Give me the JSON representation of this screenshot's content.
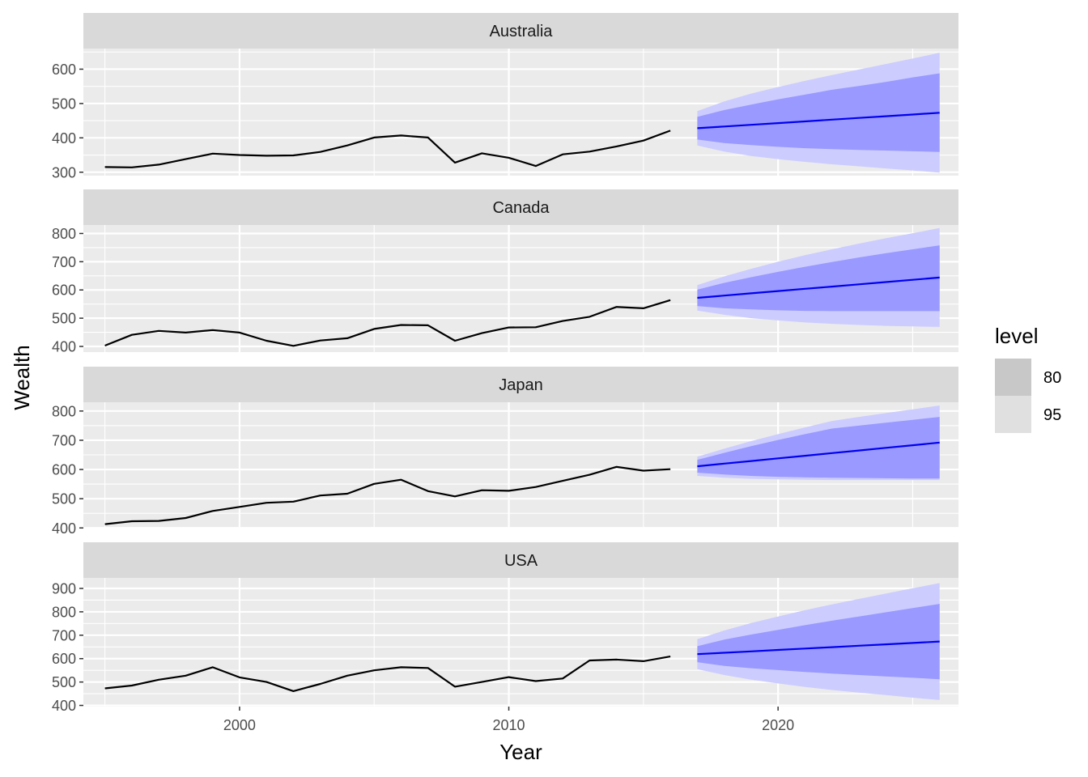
{
  "chart_data": {
    "type": "line",
    "xlabel": "Year",
    "ylabel": "Wealth",
    "xlim": [
      1994.2,
      2026.7
    ],
    "x_ticks": [
      2000,
      2010,
      2020
    ],
    "x_tick_labels": [
      "2000",
      "2010",
      "2020"
    ],
    "history_x": [
      1995,
      1996,
      1997,
      1998,
      1999,
      2000,
      2001,
      2002,
      2003,
      2004,
      2005,
      2006,
      2007,
      2008,
      2009,
      2010,
      2011,
      2012,
      2013,
      2014,
      2015,
      2016
    ],
    "forecast_x": [
      2017,
      2018,
      2019,
      2020,
      2021,
      2022,
      2023,
      2024,
      2025,
      2026
    ],
    "legend": {
      "title": "level",
      "placement": "right",
      "entries": [
        {
          "label": "80",
          "color": "#c8c8c8"
        },
        {
          "label": "95",
          "color": "#e0e0e0"
        }
      ]
    },
    "colors": {
      "history": "#000000",
      "forecast": "#0000ee",
      "band80": "#9999ff",
      "band95": "#ccccff",
      "panel_bg": "#ebebeb",
      "strip_bg": "#d9d9d9",
      "grid": "#ffffff"
    },
    "panels": [
      {
        "name": "Australia",
        "ylim": [
          290,
          660
        ],
        "y_ticks": [
          300,
          400,
          500,
          600
        ],
        "y_tick_labels": [
          "300",
          "400",
          "500",
          "600"
        ],
        "history": [
          315,
          314,
          322,
          338,
          354,
          350,
          348,
          349,
          359,
          378,
          401,
          407,
          401,
          328,
          355,
          342,
          318,
          352,
          360,
          375,
          392,
          421
        ],
        "forecast": {
          "mean": [
            428,
            433,
            438,
            443,
            448,
            453,
            458,
            463,
            468,
            473
          ],
          "lo80": [
            395,
            385,
            379,
            374,
            370,
            367,
            365,
            363,
            361,
            359
          ],
          "hi80": [
            461,
            481,
            497,
            512,
            526,
            540,
            551,
            563,
            576,
            588
          ],
          "lo95": [
            378,
            360,
            347,
            338,
            330,
            323,
            317,
            311,
            305,
            299
          ],
          "hi95": [
            478,
            506,
            529,
            548,
            566,
            583,
            599,
            615,
            631,
            648
          ]
        }
      },
      {
        "name": "Canada",
        "ylim": [
          380,
          830
        ],
        "y_ticks": [
          400,
          500,
          600,
          700,
          800
        ],
        "y_tick_labels": [
          "400",
          "500",
          "600",
          "700",
          "800"
        ],
        "history": [
          403,
          441,
          455,
          449,
          458,
          449,
          420,
          402,
          421,
          429,
          462,
          476,
          475,
          420,
          447,
          467,
          468,
          490,
          505,
          540,
          535,
          564
        ],
        "forecast": {
          "mean": [
            572,
            580,
            588,
            596,
            604,
            612,
            620,
            628,
            636,
            644
          ],
          "lo80": [
            543,
            535,
            531,
            528,
            526,
            525,
            525,
            525,
            525,
            525
          ],
          "hi80": [
            601,
            625,
            645,
            664,
            682,
            699,
            715,
            730,
            744,
            758
          ],
          "lo95": [
            527,
            512,
            500,
            492,
            485,
            480,
            476,
            473,
            471,
            469
          ],
          "hi95": [
            617,
            648,
            675,
            700,
            723,
            744,
            764,
            783,
            801,
            819
          ]
        }
      },
      {
        "name": "Japan",
        "ylim": [
          398,
          830
        ],
        "y_ticks": [
          400,
          500,
          600,
          700,
          800
        ],
        "y_tick_labels": [
          "400",
          "500",
          "600",
          "700",
          "800"
        ],
        "history": [
          413,
          423,
          424,
          434,
          458,
          472,
          486,
          490,
          511,
          517,
          551,
          565,
          526,
          508,
          529,
          527,
          540,
          561,
          582,
          609,
          596,
          601
        ],
        "forecast": {
          "mean": [
            611,
            620,
            629,
            638,
            647,
            656,
            665,
            674,
            683,
            692
          ],
          "lo80": [
            589,
            583,
            578,
            575,
            573,
            572,
            571,
            570,
            569,
            569
          ],
          "hi80": [
            633,
            657,
            680,
            701,
            721,
            740,
            750,
            760,
            770,
            780
          ],
          "lo95": [
            578,
            572,
            568,
            566,
            565,
            564,
            564,
            564,
            564,
            564
          ],
          "hi95": [
            644,
            671,
            697,
            721,
            744,
            766,
            780,
            793,
            806,
            819
          ]
        }
      },
      {
        "name": "USA",
        "ylim": [
          395,
          945
        ],
        "y_ticks": [
          400,
          500,
          600,
          700,
          800,
          900
        ],
        "y_tick_labels": [
          "400",
          "500",
          "600",
          "700",
          "800",
          "900"
        ],
        "history": [
          473,
          485,
          510,
          527,
          563,
          520,
          500,
          461,
          492,
          527,
          550,
          563,
          560,
          480,
          500,
          521,
          504,
          515,
          592,
          596,
          589,
          609
        ],
        "forecast": {
          "mean": [
            619,
            625,
            631,
            637,
            643,
            649,
            655,
            661,
            667,
            673
          ],
          "lo80": [
            585,
            569,
            559,
            551,
            543,
            536,
            530,
            524,
            518,
            512
          ],
          "hi80": [
            653,
            681,
            703,
            723,
            743,
            762,
            780,
            798,
            816,
            834
          ],
          "lo95": [
            555,
            530,
            510,
            494,
            479,
            466,
            455,
            444,
            433,
            423
          ],
          "hi95": [
            683,
            720,
            752,
            780,
            807,
            832,
            855,
            878,
            901,
            923
          ]
        }
      }
    ]
  }
}
